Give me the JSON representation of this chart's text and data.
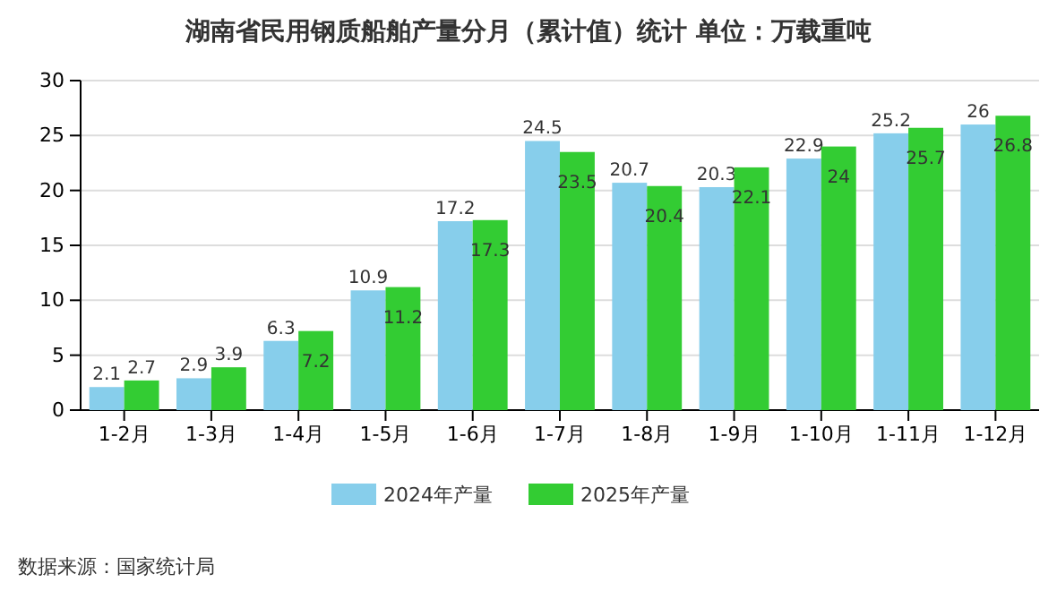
{
  "chart_data": {
    "type": "bar",
    "title": "湖南省民用钢质船舶产量分月（累计值）统计 单位：万载重吨",
    "categories": [
      "1-2月",
      "1-3月",
      "1-4月",
      "1-5月",
      "1-6月",
      "1-7月",
      "1-8月",
      "1-9月",
      "1-10月",
      "1-11月",
      "1-12月"
    ],
    "series": [
      {
        "name": "2024年产量",
        "color": "#87ceeb",
        "values": [
          2.1,
          2.9,
          6.3,
          10.9,
          17.2,
          24.5,
          20.7,
          20.3,
          22.9,
          25.2,
          26
        ]
      },
      {
        "name": "2025年产量",
        "color": "#33cc33",
        "values": [
          2.7,
          3.9,
          7.2,
          11.2,
          17.3,
          23.5,
          20.4,
          22.1,
          24,
          25.7,
          26.8
        ]
      }
    ],
    "ylim": [
      0,
      30
    ],
    "yticks": [
      0,
      5,
      10,
      15,
      20,
      25,
      30
    ],
    "grid": "y",
    "legend": "bottom",
    "data_labels": true,
    "annotations": [
      "数据来源：国家统计局"
    ]
  }
}
